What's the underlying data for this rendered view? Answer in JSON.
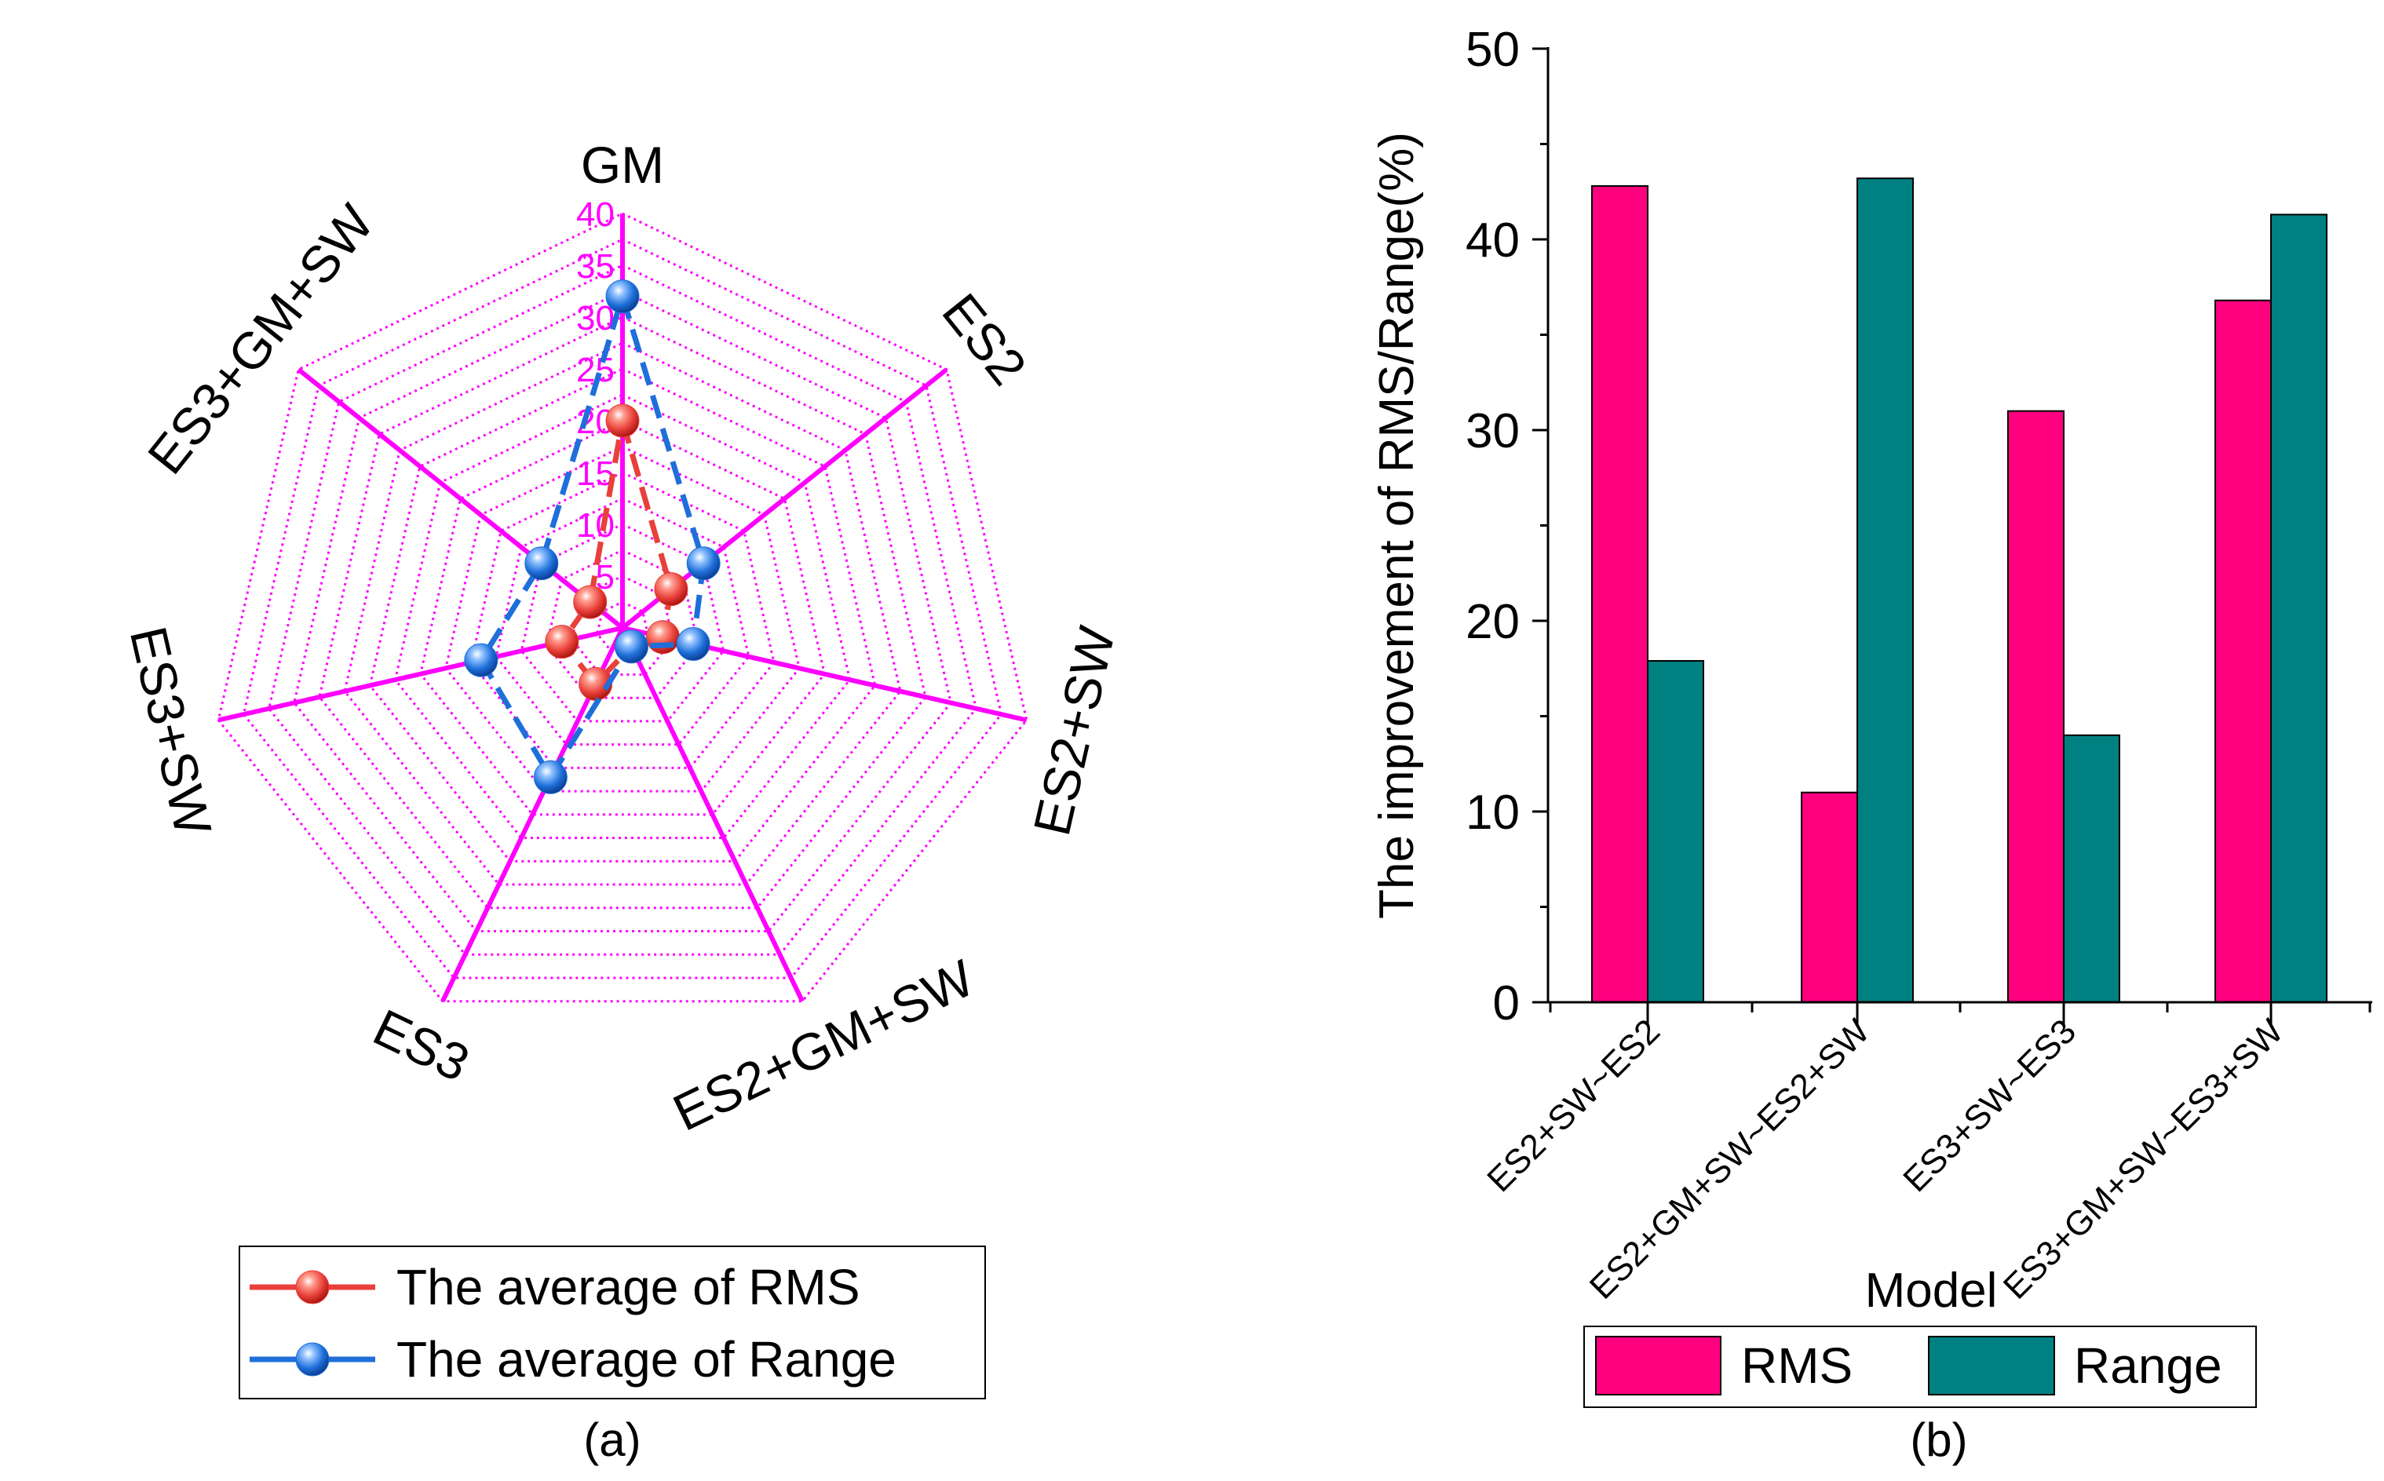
{
  "colors": {
    "rms": "#FF007F",
    "range": "#008080",
    "radar_grid": "#FF00FF",
    "radar_rms_line": "#E8403A",
    "radar_range_line": "#1E6FD9"
  },
  "chart_data": [
    {
      "id": "a",
      "type": "radar",
      "caption": "(a)",
      "axes": [
        "GM",
        "ES2",
        "ES2+SW",
        "ES2+GM+SW",
        "ES3",
        "ES3+SW",
        "ES3+GM+SW"
      ],
      "radial_ticks": [
        5,
        10,
        15,
        20,
        25,
        30,
        35,
        40
      ],
      "rlim": [
        0,
        40
      ],
      "series": [
        {
          "name": "The average of RMS",
          "values": [
            20,
            6,
            4,
            2,
            6,
            6,
            4
          ]
        },
        {
          "name": "The average of Range",
          "values": [
            32,
            10,
            7,
            2,
            16,
            14,
            10
          ]
        }
      ],
      "legend_position": "bottom"
    },
    {
      "id": "b",
      "type": "bar",
      "caption": "(b)",
      "categories": [
        "ES2+SW~ES2",
        "ES2+GM+SW~ES2+SW",
        "ES3+SW~ES3",
        "ES3+GM+SW~ES3+SW"
      ],
      "series": [
        {
          "name": "RMS",
          "values": [
            42.8,
            11.0,
            31.0,
            36.8
          ]
        },
        {
          "name": "Range",
          "values": [
            17.9,
            43.2,
            14.0,
            41.3
          ]
        }
      ],
      "ylabel": "The improvement of RMS/Range(%)",
      "xlabel": "Model",
      "ylim": [
        0,
        50
      ],
      "yticks": [
        0,
        10,
        20,
        30,
        40,
        50
      ],
      "legend_position": "bottom"
    }
  ]
}
